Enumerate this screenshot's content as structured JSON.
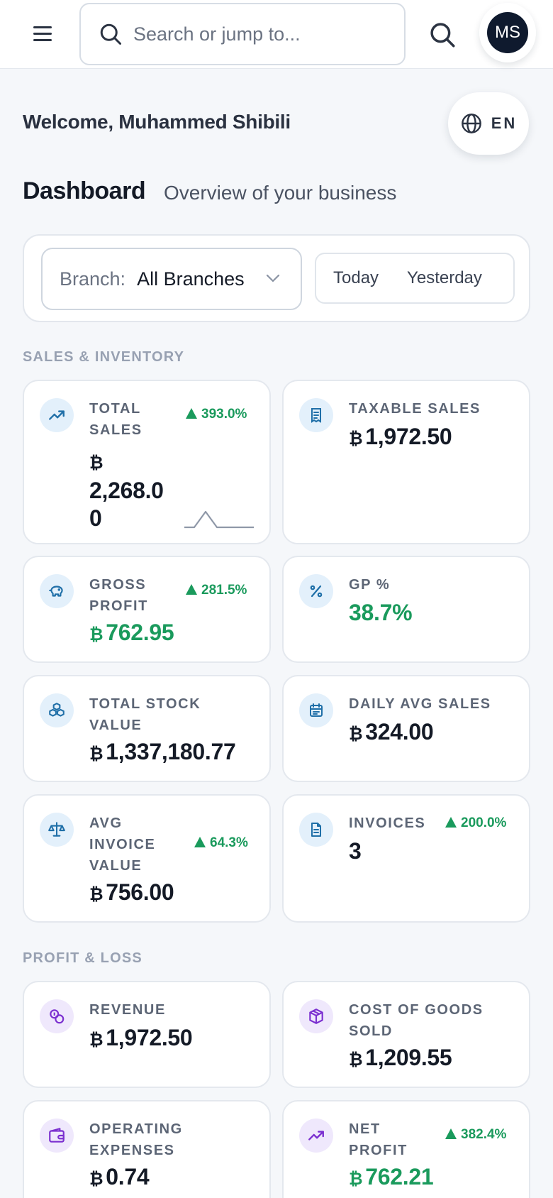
{
  "topbar": {
    "search_placeholder": "Search or jump to...",
    "avatar_initials": "MS"
  },
  "header": {
    "welcome": "Welcome, Muhammed Shibili",
    "lang": "EN",
    "title": "Dashboard",
    "subtitle": "Overview of your business"
  },
  "filters": {
    "branch_label": "Branch:",
    "branch_value": "All Branches",
    "periods": [
      "Today",
      "Yesterday"
    ]
  },
  "currency_symbol": "₿",
  "sections": {
    "sales": "SALES & INVENTORY",
    "pl": "PROFIT & LOSS"
  },
  "cards": {
    "total_sales": {
      "label1": "TOTAL",
      "label2": "SALES",
      "value_line1": "2,268.0",
      "value_line2": "0",
      "change": "393.0%"
    },
    "taxable_sales": {
      "label": "TAXABLE SALES",
      "value": "1,972.50"
    },
    "gross_profit": {
      "label1": "GROSS",
      "label2": "PROFIT",
      "value": "762.95",
      "change": "281.5%"
    },
    "gp_percent": {
      "label": "GP %",
      "value": "38.7%"
    },
    "total_stock": {
      "label1": "TOTAL STOCK",
      "label2": "VALUE",
      "value": "1,337,180.77"
    },
    "daily_avg": {
      "label": "DAILY AVG SALES",
      "value": "324.00"
    },
    "avg_invoice": {
      "label1": "AVG",
      "label2": "INVOICE",
      "label3": "VALUE",
      "value": "756.00",
      "change": "64.3%"
    },
    "invoices": {
      "label": "INVOICES",
      "value": "3",
      "change": "200.0%"
    },
    "revenue": {
      "label": "REVENUE",
      "value": "1,972.50"
    },
    "cogs": {
      "label1": "COST OF GOODS",
      "label2": "SOLD",
      "value": "1,209.55"
    },
    "opex": {
      "label1": "OPERATING",
      "label2": "EXPENSES",
      "value": "0.74"
    },
    "net_profit": {
      "label1": "NET",
      "label2": "PROFIT",
      "value": "762.21",
      "change": "382.4%"
    }
  },
  "colors": {
    "positive": "#1a9a5c",
    "icon_blue": "#1f6fa8",
    "icon_purple": "#7b2fd0"
  }
}
